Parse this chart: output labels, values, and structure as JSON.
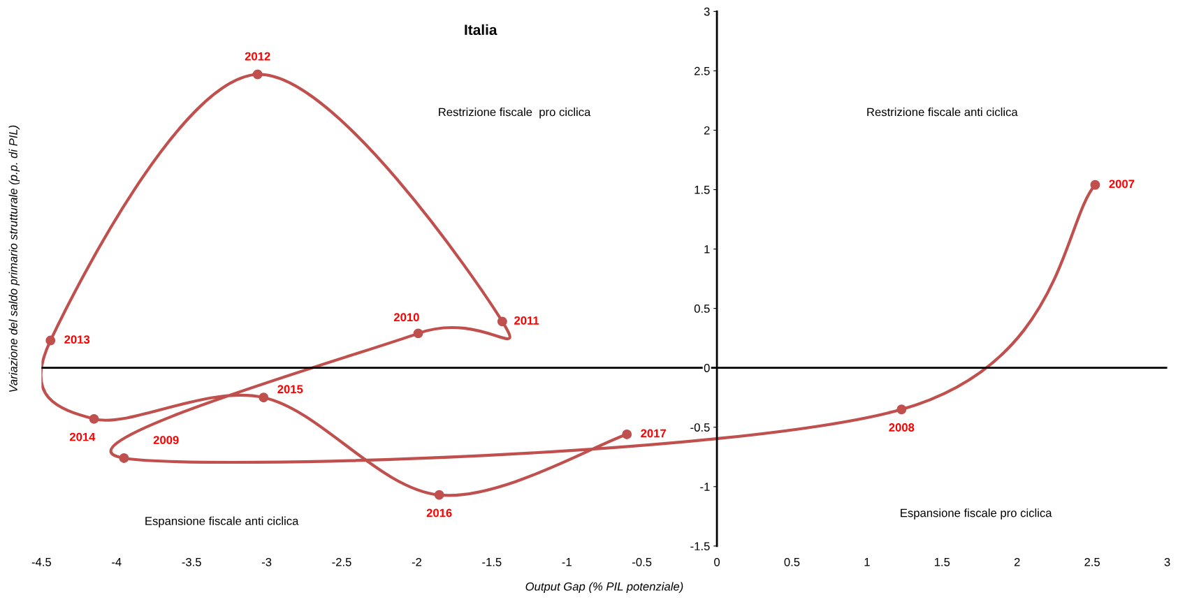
{
  "chart_data": {
    "type": "line",
    "title": "Italia",
    "xlabel": "Output Gap (% PIL potenziale)",
    "ylabel": "Variazione del saldo primario strutturale (p.p. di PIL)",
    "x": [
      2.52,
      1.23,
      -3.95,
      -1.99,
      -1.43,
      -3.06,
      -4.44,
      -4.15,
      -3.02,
      -1.85,
      -0.6
    ],
    "series": [
      {
        "color": "#c0504d",
        "values": [
          1.54,
          -0.35,
          -0.76,
          0.29,
          0.39,
          2.47,
          0.23,
          -0.43,
          -0.25,
          -1.07,
          -0.56
        ]
      }
    ],
    "marker": "circle",
    "line_style": "solid",
    "xlim": [
      -4.5,
      3
    ],
    "xticks": [
      -4.5,
      -4,
      -3.5,
      -3,
      -2.5,
      -2,
      -1.5,
      -1,
      -0.5,
      0,
      0.5,
      1,
      1.5,
      2,
      2.5,
      3
    ],
    "ylim": [
      -1.5,
      3
    ],
    "yticks": [
      -1.5,
      -1,
      -0.5,
      0,
      0.5,
      1,
      1.5,
      2,
      2.5,
      3
    ],
    "ref_lines": [
      {
        "axis": "y",
        "value": 0,
        "color": "#000000"
      }
    ],
    "annotations": [
      {
        "text": "2007",
        "x": 2.52,
        "y": 1.54
      },
      {
        "text": "2008",
        "x": 1.23,
        "y": -0.35
      },
      {
        "text": "2009",
        "x": -3.95,
        "y": -0.76
      },
      {
        "text": "2010",
        "x": -1.99,
        "y": 0.29
      },
      {
        "text": "2011",
        "x": -1.43,
        "y": 0.39
      },
      {
        "text": "2012",
        "x": -3.06,
        "y": 2.47
      },
      {
        "text": "2013",
        "x": -4.44,
        "y": 0.23
      },
      {
        "text": "2014",
        "x": -4.15,
        "y": -0.43
      },
      {
        "text": "2015",
        "x": -3.02,
        "y": -0.25
      },
      {
        "text": "2016",
        "x": -1.85,
        "y": -1.07
      },
      {
        "text": "2017",
        "x": -0.6,
        "y": -0.56
      },
      "Restrizione fiscale  pro ciclica",
      "Restrizione fiscale anti ciclica",
      "Espansione fiscale anti ciclica",
      "Espansione fiscale pro ciclica"
    ],
    "grid": false,
    "legend": false
  }
}
